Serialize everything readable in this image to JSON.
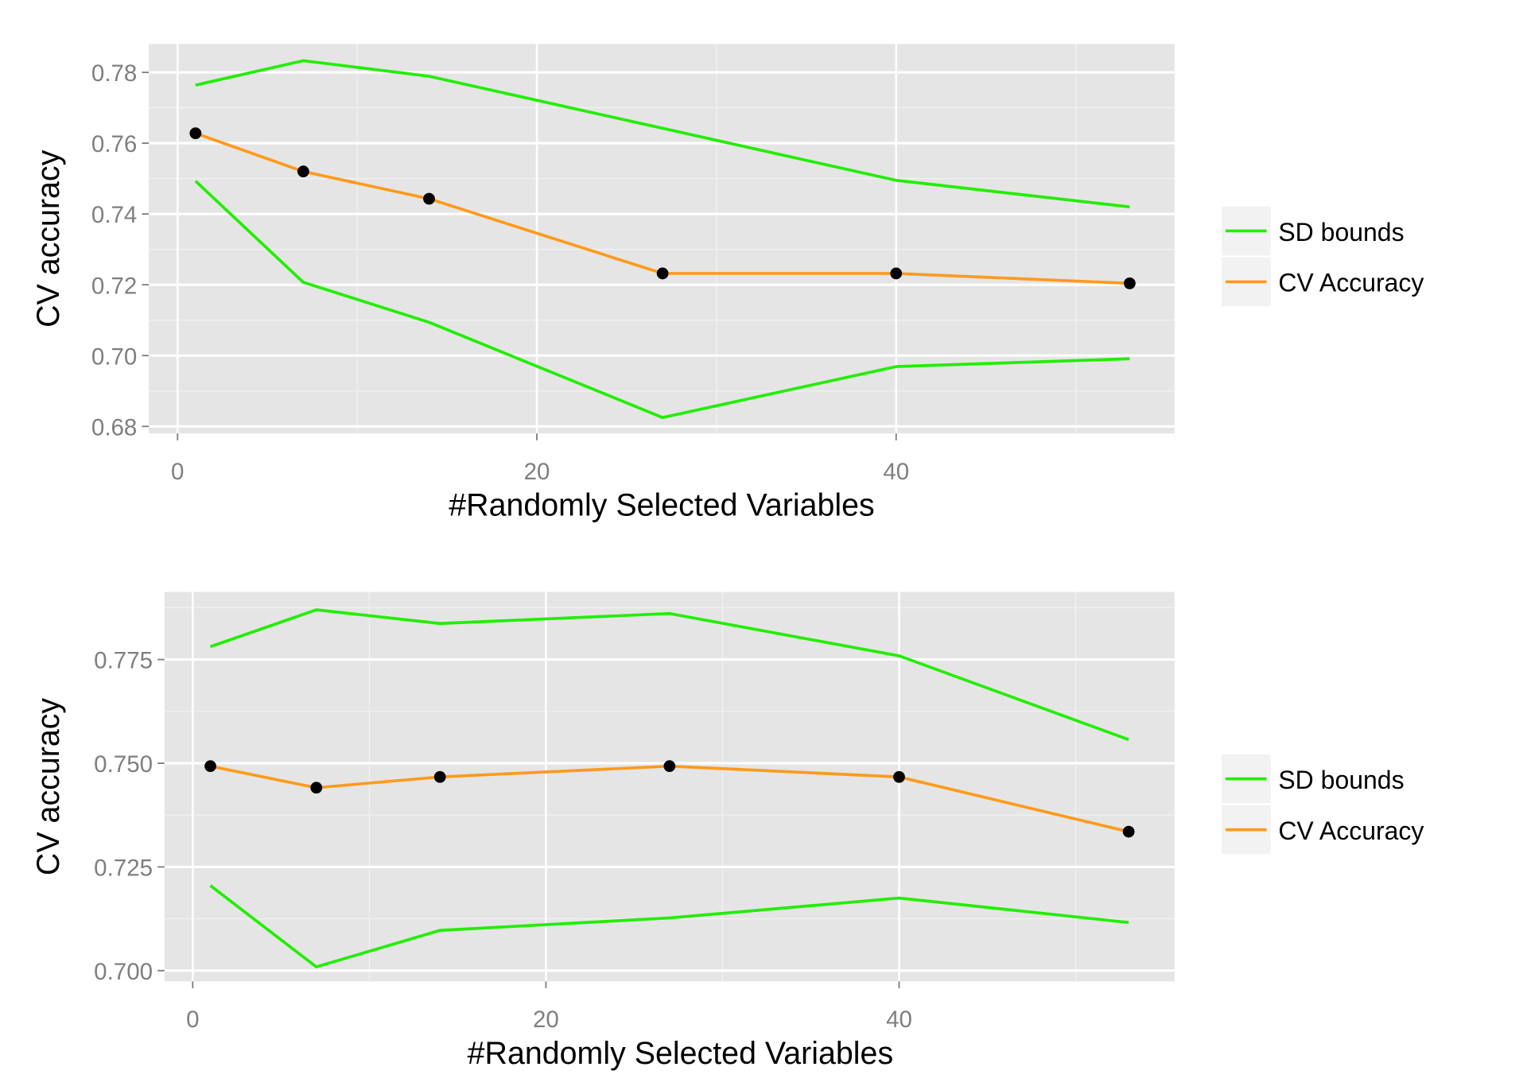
{
  "chart_data": [
    {
      "type": "line",
      "xlabel": "#Randomly Selected Variables",
      "ylabel": "CV accuracy",
      "x": [
        1,
        7,
        14,
        27,
        40,
        53
      ],
      "xlim": [
        -1.6,
        55.5
      ],
      "ylim": [
        0.678,
        0.788
      ],
      "xticks": [
        0,
        20,
        40
      ],
      "yticks": [
        0.68,
        0.7,
        0.72,
        0.74,
        0.76,
        0.78
      ],
      "ytick_labels": [
        "0.68",
        "0.70",
        "0.72",
        "0.74",
        "0.76",
        "0.78"
      ],
      "grid": true,
      "legend_position": "right",
      "series": [
        {
          "name": "SD bounds",
          "role": "upper",
          "color": "#22ee00",
          "values": [
            0.7764,
            0.7833,
            0.7789,
            0.7642,
            0.7495,
            0.742
          ]
        },
        {
          "name": "SD bounds",
          "role": "lower",
          "color": "#22ee00",
          "values": [
            0.7493,
            0.7207,
            0.7094,
            0.6825,
            0.6969,
            0.6991
          ]
        },
        {
          "name": "CV Accuracy",
          "color": "#ff9a1a",
          "markers": true,
          "values": [
            0.7628,
            0.752,
            0.7443,
            0.7232,
            0.7232,
            0.7204
          ]
        }
      ],
      "legend": [
        "SD bounds",
        "CV Accuracy"
      ]
    },
    {
      "type": "line",
      "xlabel": "#Randomly Selected Variables",
      "ylabel": "CV accuracy",
      "x": [
        1,
        7,
        14,
        27,
        40,
        53
      ],
      "xlim": [
        -1.6,
        55.6
      ],
      "ylim": [
        0.6974,
        0.7913
      ],
      "xticks": [
        0,
        20,
        40
      ],
      "yticks": [
        0.7,
        0.725,
        0.75,
        0.775
      ],
      "ytick_labels": [
        "0.700",
        "0.725",
        "0.750",
        "0.775"
      ],
      "grid": true,
      "legend_position": "right",
      "series": [
        {
          "name": "SD bounds",
          "role": "upper",
          "color": "#22ee00",
          "values": [
            0.7781,
            0.787,
            0.7837,
            0.7861,
            0.7759,
            0.7557
          ]
        },
        {
          "name": "SD bounds",
          "role": "lower",
          "color": "#22ee00",
          "values": [
            0.7205,
            0.7009,
            0.7097,
            0.7127,
            0.7175,
            0.7116
          ]
        },
        {
          "name": "CV Accuracy",
          "color": "#ff9a1a",
          "markers": true,
          "values": [
            0.7493,
            0.7441,
            0.7467,
            0.7493,
            0.7467,
            0.7335
          ]
        }
      ],
      "legend": [
        "SD bounds",
        "CV Accuracy"
      ]
    }
  ]
}
